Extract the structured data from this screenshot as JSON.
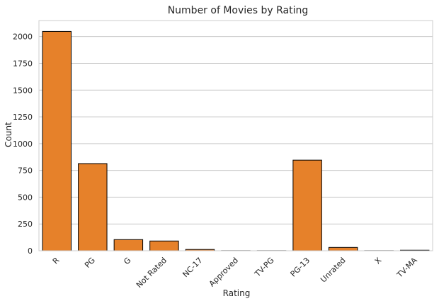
{
  "chart_data": {
    "type": "bar",
    "title": "Number of Movies by Rating",
    "xlabel": "Rating",
    "ylabel": "Count",
    "categories": [
      "R",
      "PG",
      "G",
      "Not Rated",
      "NC-17",
      "Approved",
      "TV-PG",
      "PG-13",
      "Unrated",
      "X",
      "TV-MA"
    ],
    "values": [
      2048,
      814,
      104,
      91,
      12,
      1,
      1,
      846,
      31,
      1,
      5
    ],
    "ylim": [
      0,
      2150
    ],
    "yticks": [
      0,
      250,
      500,
      750,
      1000,
      1250,
      1500,
      1750,
      2000
    ],
    "grid": true,
    "bar_color": "#E6812A",
    "bar_edge_color": "#000000",
    "grid_color": "#CCCCCC",
    "frame_color": "#CCCCCC"
  }
}
